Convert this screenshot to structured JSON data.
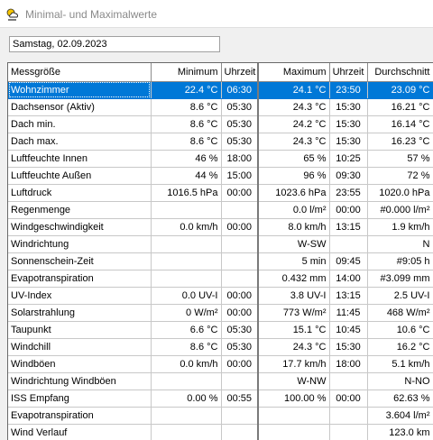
{
  "window": {
    "title": "Minimal- und Maximalwerte",
    "icon": "weather-app-icon"
  },
  "date_field": {
    "value": "Samstag, 02.09.2023"
  },
  "columns": {
    "name": "Messgröße",
    "min": "Minimum",
    "min_time": "Uhrzeit",
    "max": "Maximum",
    "max_time": "Uhrzeit",
    "avg": "Durchschnitt"
  },
  "rows": [
    {
      "name": "Wohnzimmer",
      "min": "22.4 °C",
      "min_time": "06:30",
      "max": "24.1 °C",
      "max_time": "23:50",
      "avg": "23.09 °C"
    },
    {
      "name": "Dachsensor (Aktiv)",
      "min": "8.6 °C",
      "min_time": "05:30",
      "max": "24.3 °C",
      "max_time": "15:30",
      "avg": "16.21 °C"
    },
    {
      "name": "Dach min.",
      "min": "8.6 °C",
      "min_time": "05:30",
      "max": "24.2 °C",
      "max_time": "15:30",
      "avg": "16.14 °C"
    },
    {
      "name": "Dach max.",
      "min": "8.6 °C",
      "min_time": "05:30",
      "max": "24.3 °C",
      "max_time": "15:30",
      "avg": "16.23 °C"
    },
    {
      "name": "Luftfeuchte Innen",
      "min": "46 %",
      "min_time": "18:00",
      "max": "65 %",
      "max_time": "10:25",
      "avg": "57 %"
    },
    {
      "name": "Luftfeuchte Außen",
      "min": "44 %",
      "min_time": "15:00",
      "max": "96 %",
      "max_time": "09:30",
      "avg": "72 %"
    },
    {
      "name": "Luftdruck",
      "min": "1016.5 hPa",
      "min_time": "00:00",
      "max": "1023.6 hPa",
      "max_time": "23:55",
      "avg": "1020.0 hPa"
    },
    {
      "name": "Regenmenge",
      "min": "",
      "min_time": "",
      "max": "0.0 l/m²",
      "max_time": "00:00",
      "avg": "#0.000 l/m²"
    },
    {
      "name": "Windgeschwindigkeit",
      "min": "0.0 km/h",
      "min_time": "00:00",
      "max": "8.0 km/h",
      "max_time": "13:15",
      "avg": "1.9 km/h"
    },
    {
      "name": "Windrichtung",
      "min": "",
      "min_time": "",
      "max": "W-SW",
      "max_time": "",
      "avg": "N"
    },
    {
      "name": "Sonnenschein-Zeit",
      "min": "",
      "min_time": "",
      "max": "5 min",
      "max_time": "09:45",
      "avg": "#9:05 h"
    },
    {
      "name": "Evapotranspiration",
      "min": "",
      "min_time": "",
      "max": "0.432 mm",
      "max_time": "14:00",
      "avg": "#3.099 mm"
    },
    {
      "name": "UV-Index",
      "min": "0.0 UV-I",
      "min_time": "00:00",
      "max": "3.8 UV-I",
      "max_time": "13:15",
      "avg": "2.5 UV-I"
    },
    {
      "name": "Solarstrahlung",
      "min": "0 W/m²",
      "min_time": "00:00",
      "max": "773 W/m²",
      "max_time": "11:45",
      "avg": "468 W/m²"
    },
    {
      "name": "Taupunkt",
      "min": "6.6 °C",
      "min_time": "05:30",
      "max": "15.1 °C",
      "max_time": "10:45",
      "avg": "10.6 °C"
    },
    {
      "name": "Windchill",
      "min": "8.6 °C",
      "min_time": "05:30",
      "max": "24.3 °C",
      "max_time": "15:30",
      "avg": "16.2 °C"
    },
    {
      "name": "Windböen",
      "min": "0.0 km/h",
      "min_time": "00:00",
      "max": "17.7 km/h",
      "max_time": "18:00",
      "avg": "5.1 km/h"
    },
    {
      "name": "Windrichtung Windböen",
      "min": "",
      "min_time": "",
      "max": "W-NW",
      "max_time": "",
      "avg": "N-NO"
    },
    {
      "name": "ISS Empfang",
      "min": "0.00 %",
      "min_time": "00:55",
      "max": "100.00 %",
      "max_time": "00:00",
      "avg": "62.63 %"
    },
    {
      "name": "Evapotranspiration",
      "min": "",
      "min_time": "",
      "max": "",
      "max_time": "",
      "avg": "3.604 l/m²"
    },
    {
      "name": "Wind Verlauf",
      "min": "",
      "min_time": "",
      "max": "",
      "max_time": "",
      "avg": "123.0 km"
    }
  ],
  "selected_row": 0
}
